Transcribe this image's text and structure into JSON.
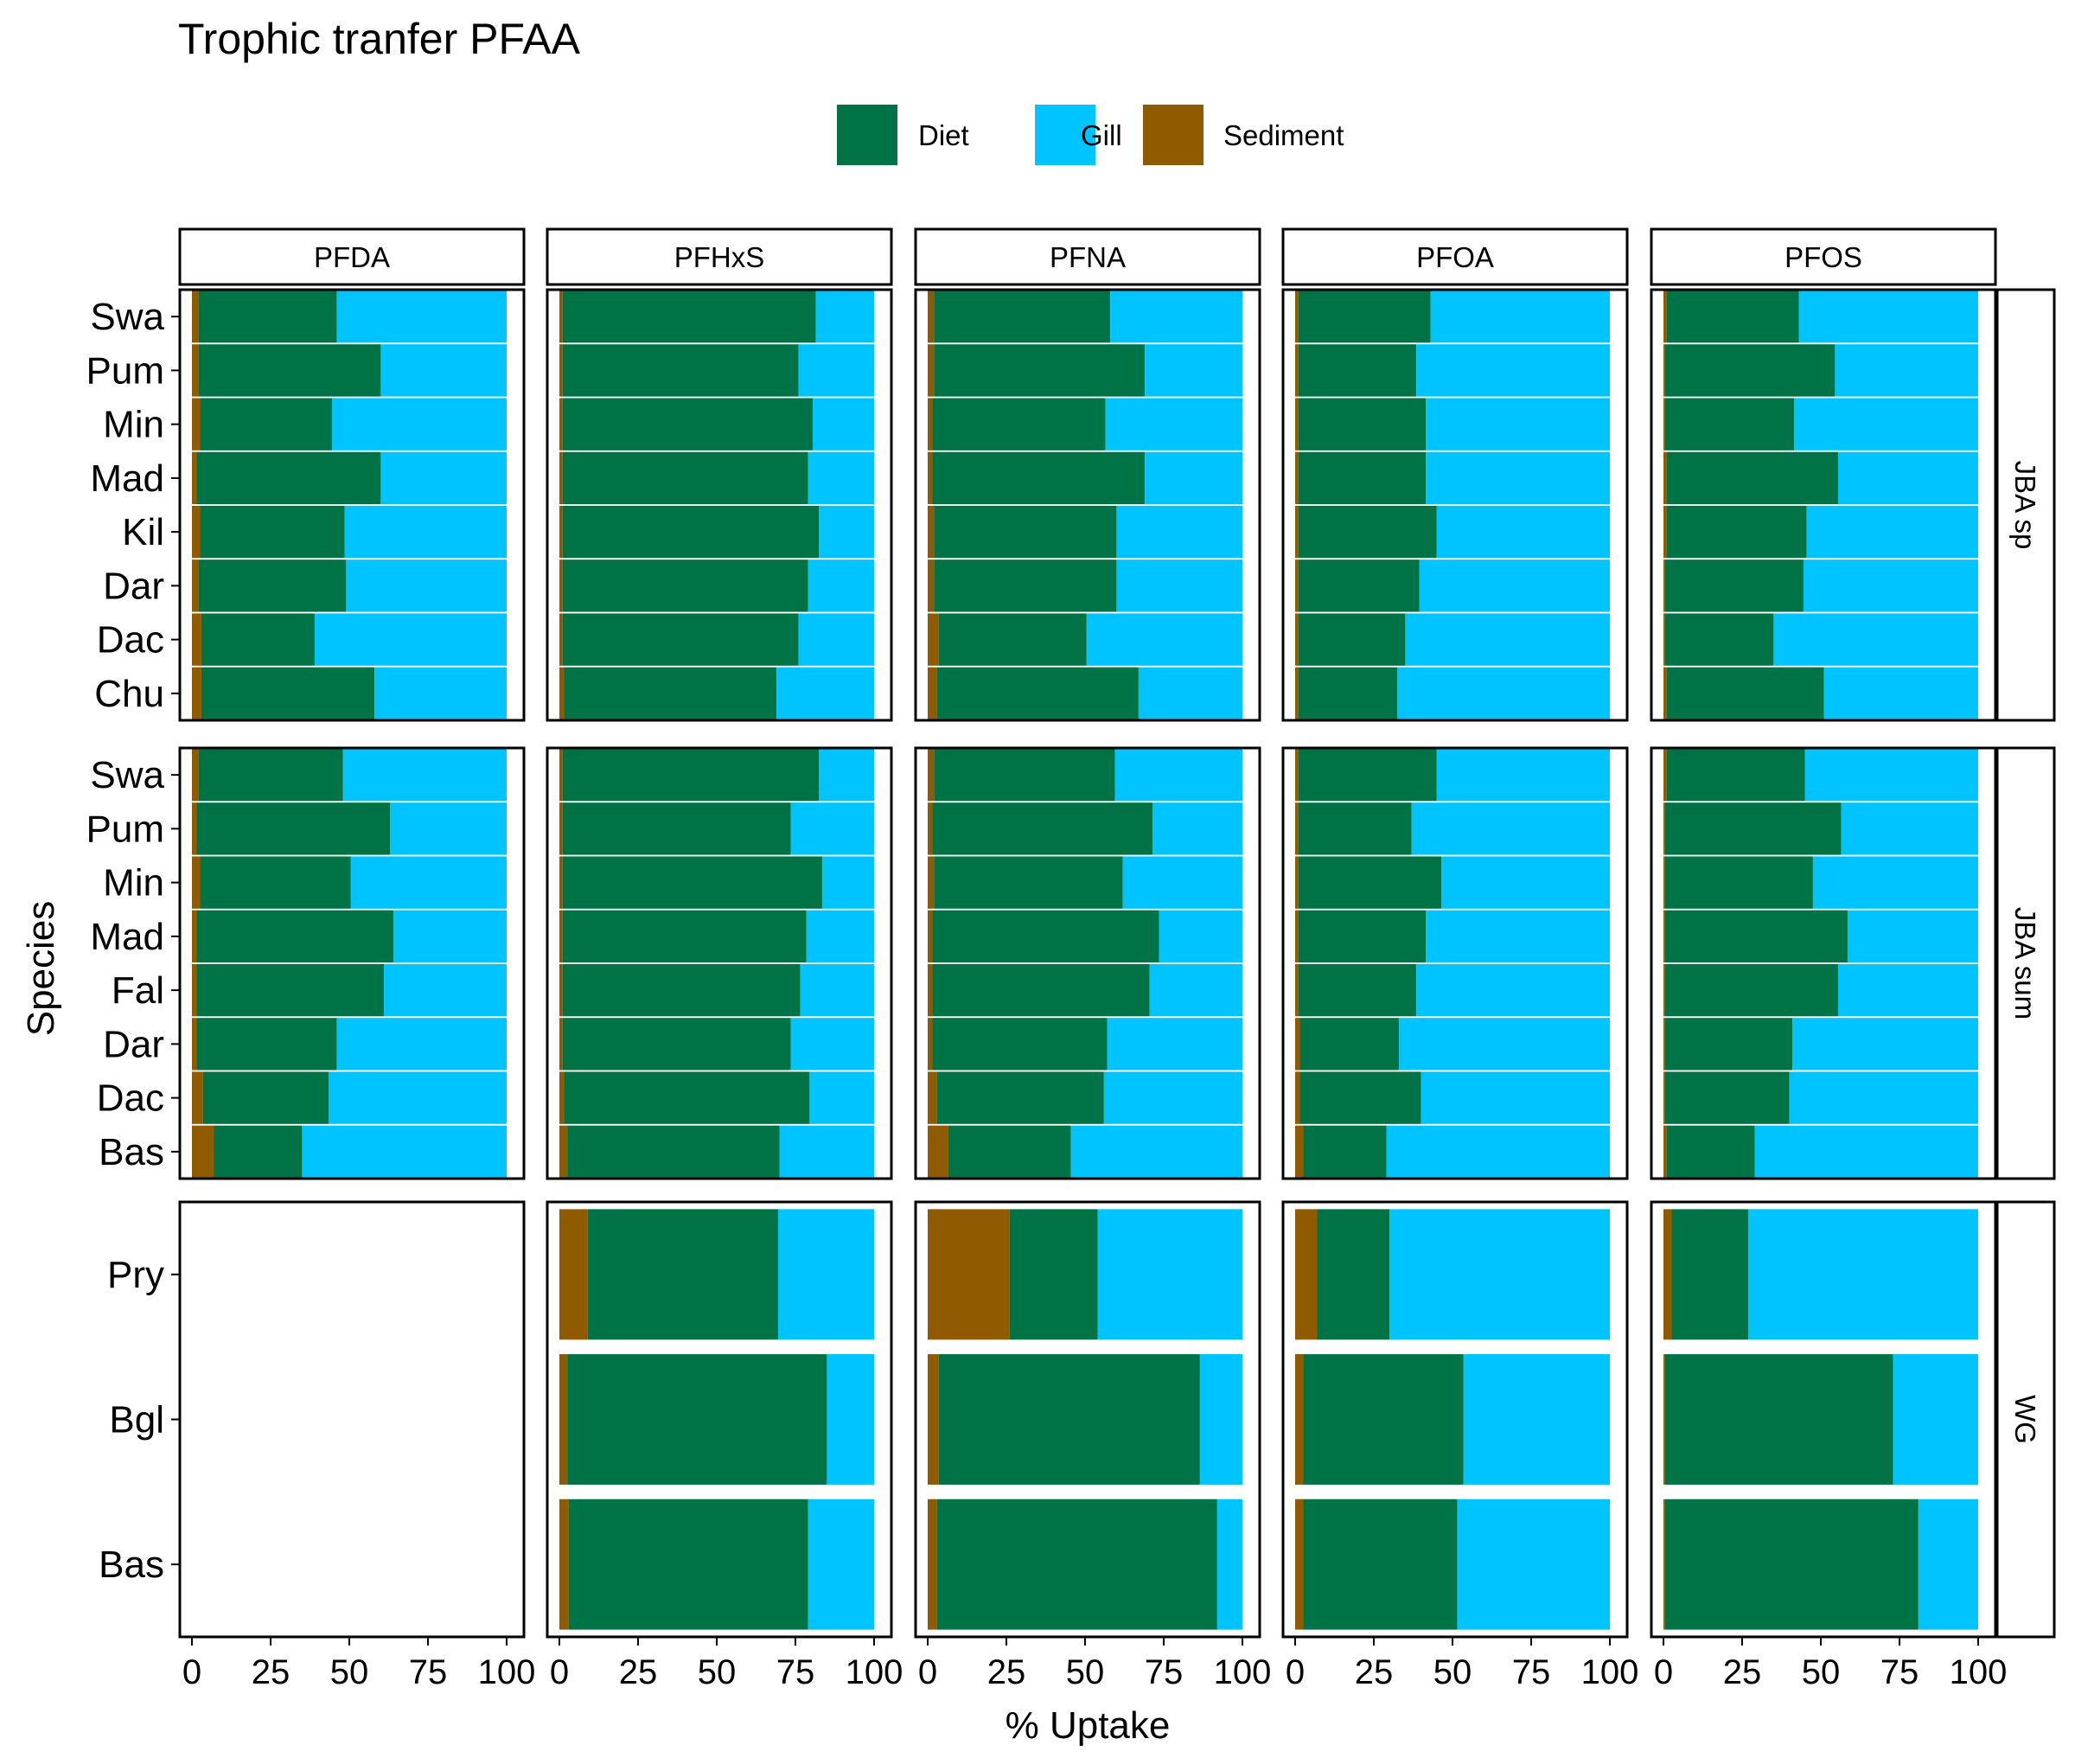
{
  "chart_data": {
    "type": "bar",
    "orientation": "horizontal",
    "stacked": true,
    "title": "Trophic tranfer PFAA",
    "xlabel": "% Uptake",
    "ylabel": "Species",
    "xlim": [
      0,
      100
    ],
    "xticks": [
      "0",
      "25",
      "50",
      "75",
      "100"
    ],
    "legend": {
      "position": "top",
      "entries": [
        {
          "name": "Diet",
          "color": "#007346"
        },
        {
          "name": "Gill",
          "color": "#00C4FF"
        },
        {
          "name": "Sediment",
          "color": "#8F5A00"
        }
      ]
    },
    "columns": [
      "PFDA",
      "PFHxS",
      "PFNA",
      "PFOA",
      "PFOS"
    ],
    "rows": [
      {
        "name": "JBA sp",
        "species": [
          "Swa",
          "Pum",
          "Min",
          "Mad",
          "Kil",
          "Dar",
          "Dac",
          "Chu"
        ],
        "panels": {
          "PFDA": {
            "Sediment": [
              2,
              2,
              2.5,
              1.5,
              2.5,
              2,
              3,
              3
            ],
            "Diet": [
              44,
              58,
              42,
              58.5,
              46,
              47,
              36,
              55
            ]
          },
          "PFHxS": {
            "Sediment": [
              1,
              1,
              1,
              1,
              1,
              1,
              1,
              1.5
            ],
            "Diet": [
              80.5,
              75,
              79.5,
              78,
              81.5,
              78,
              75,
              67.5
            ]
          },
          "PFNA": {
            "Sediment": [
              2,
              2,
              1.5,
              1.5,
              2,
              2,
              3.5,
              3
            ],
            "Diet": [
              56,
              67,
              55,
              67.5,
              58,
              58,
              47,
              64
            ]
          },
          "PFOA": {
            "Sediment": [
              1,
              1,
              1,
              1,
              1,
              1,
              1,
              1
            ],
            "Diet": [
              42,
              37.5,
              40.5,
              40.5,
              44,
              38.5,
              34,
              31.5
            ]
          },
          "PFOS": {
            "Sediment": [
              1,
              0.5,
              0.5,
              1,
              1,
              0.5,
              0.5,
              1
            ],
            "Diet": [
              42,
              54,
              41,
              54.5,
              44.5,
              44,
              34.5,
              50
            ]
          }
        }
      },
      {
        "name": "JBA sum",
        "species": [
          "Swa",
          "Pum",
          "Min",
          "Mad",
          "Fal",
          "Dar",
          "Dac",
          "Bas"
        ],
        "panels": {
          "PFDA": {
            "Sediment": [
              2,
              1.5,
              2.5,
              1.5,
              1.5,
              1.5,
              3.5,
              7
            ],
            "Diet": [
              46,
              61.5,
              48,
              62.5,
              59.5,
              44.5,
              40,
              28
            ]
          },
          "PFHxS": {
            "Sediment": [
              1,
              1,
              1,
              1,
              1,
              1,
              1.5,
              2.5
            ],
            "Diet": [
              81.5,
              72.5,
              82.5,
              77.5,
              75.5,
              72.5,
              78,
              67.5
            ]
          },
          "PFNA": {
            "Sediment": [
              2,
              1.5,
              2,
              1.5,
              1.5,
              1.5,
              3,
              6.5
            ],
            "Diet": [
              57.5,
              70,
              60,
              72,
              69,
              55.5,
              53,
              39
            ]
          },
          "PFOA": {
            "Sediment": [
              1,
              1,
              1,
              1,
              1,
              1.5,
              1.5,
              2.5
            ],
            "Diet": [
              44,
              36,
              45.5,
              40.5,
              37.5,
              31.5,
              38.5,
              26.5
            ]
          },
          "PFOS": {
            "Sediment": [
              1,
              0.5,
              0.5,
              0.5,
              0.5,
              0.5,
              0.5,
              1
            ],
            "Diet": [
              44,
              56,
              47,
              58,
              55,
              40.5,
              39.5,
              28
            ]
          }
        }
      },
      {
        "name": "WG",
        "species": [
          "Pry",
          "Bgl",
          "Bas"
        ],
        "panels": {
          "PFHxS": {
            "Sediment": [
              9,
              2.5,
              3
            ],
            "Diet": [
              60.5,
              82.5,
              76
            ]
          },
          "PFNA": {
            "Sediment": [
              26,
              3.5,
              3
            ],
            "Diet": [
              28,
              83,
              89
            ]
          },
          "PFOA": {
            "Sediment": [
              7,
              2.5,
              2.5
            ],
            "Diet": [
              23,
              51,
              49
            ]
          },
          "PFOS": {
            "Sediment": [
              2.5,
              0.5,
              0.5
            ],
            "Diet": [
              24.5,
              72.5,
              80.5
            ]
          }
        }
      }
    ]
  }
}
